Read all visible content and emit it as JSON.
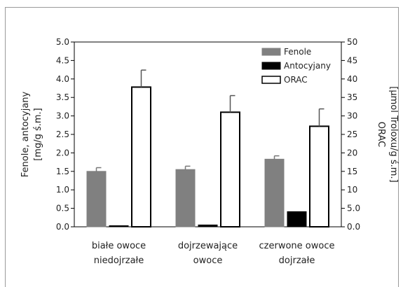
{
  "chart_data": {
    "type": "bar",
    "categories": [
      [
        "białe owoce",
        "niedojrzałe"
      ],
      [
        "dojrzewające",
        "owoce"
      ],
      [
        "czerwone owoce",
        "dojrzałe"
      ]
    ],
    "series": [
      {
        "name": "Fenole",
        "axis": "left",
        "color": "#808080",
        "values": [
          1.5,
          1.55,
          1.83
        ],
        "errors": [
          0.1,
          0.09,
          0.09
        ]
      },
      {
        "name": "Antocyjany",
        "axis": "left",
        "color": "#000000",
        "values": [
          0.03,
          0.05,
          0.41
        ],
        "errors": [
          0,
          0,
          0
        ]
      },
      {
        "name": "ORAC",
        "axis": "right",
        "color": "#ffffff",
        "values": [
          37.8,
          31.0,
          27.2
        ],
        "errors": [
          4.6,
          4.5,
          4.7
        ]
      }
    ],
    "ylabel_left": [
      "Fenole, antocyjany",
      "[mg/g ś.m.]"
    ],
    "ylabel_right": [
      "ORAC",
      "[µmol Troloxu/g ś.m.]"
    ],
    "ylim_left": [
      0,
      5
    ],
    "ylim_right": [
      0,
      50
    ],
    "yticks_left": [
      "0.0",
      "0.5",
      "1.0",
      "1.5",
      "2.0",
      "2.5",
      "3.0",
      "3.5",
      "4.0",
      "4.5",
      "5.0"
    ],
    "yticks_right": [
      "0.0",
      "5.0",
      "10",
      "15",
      "20",
      "25",
      "30",
      "35",
      "40",
      "45",
      "50"
    ],
    "grid": false,
    "legend_position": "top-right"
  }
}
